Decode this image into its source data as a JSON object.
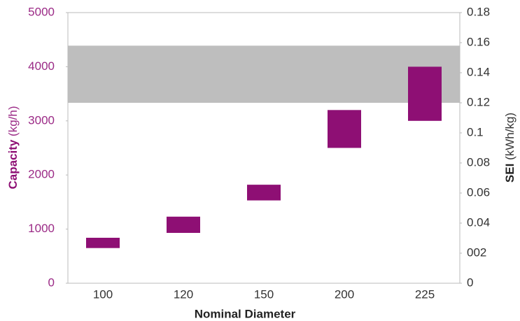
{
  "chart_data": {
    "type": "floating-bar",
    "xlabel": "Nominal Diameter",
    "ylabel": {
      "main": "Capacity",
      "unit": "(kg/h)"
    },
    "y2label": {
      "main": "SEI",
      "unit": "(kWh/kg)"
    },
    "categories": [
      "100",
      "120",
      "150",
      "200",
      "225"
    ],
    "low": [
      650,
      930,
      1530,
      2500,
      3000
    ],
    "high": [
      840,
      1230,
      1820,
      3200,
      4000
    ],
    "color": "#8e0f74",
    "ylim": [
      0,
      5000
    ],
    "yticks": [
      0,
      1000,
      2000,
      3000,
      4000,
      5000
    ],
    "y2lim": [
      0,
      0.18
    ],
    "y2ticks": [
      0,
      {
        "value": 0.02,
        "label": "002"
      },
      0.04,
      0.06,
      0.08,
      0.1,
      0.12,
      0.14,
      0.16,
      0.18
    ],
    "band": [
      0.12,
      0.158
    ],
    "band_color": "#bebebe",
    "grid": false
  }
}
